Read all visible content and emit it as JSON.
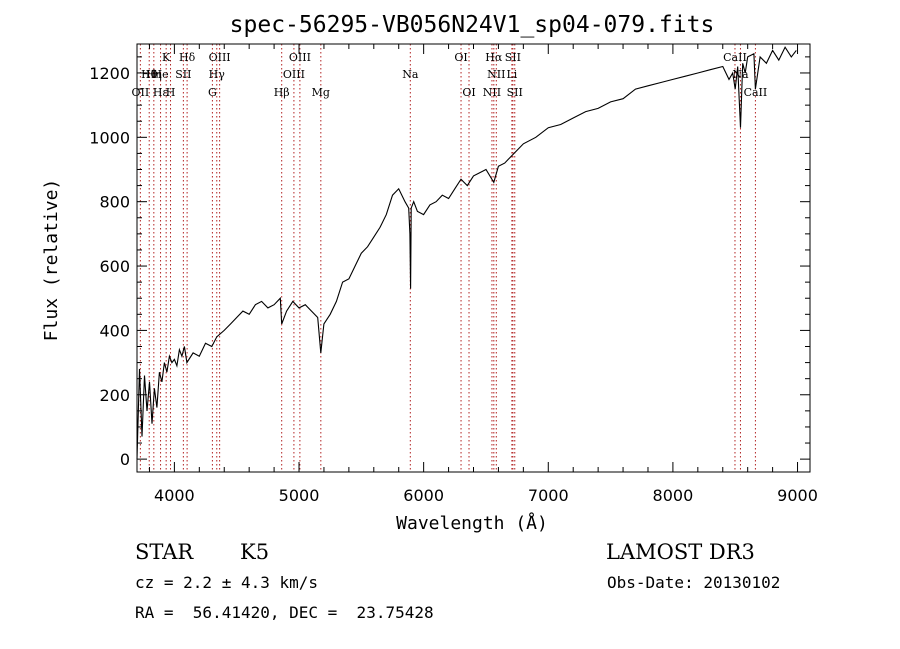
{
  "chart_data": {
    "type": "line",
    "title": "spec-56295-VB056N24V1_sp04-079.fits",
    "xlabel": "Wavelength (Å)",
    "ylabel": "Flux (relative)",
    "xlim": [
      3700,
      9100
    ],
    "ylim": [
      -40,
      1290
    ],
    "xticks": [
      4000,
      5000,
      6000,
      7000,
      8000,
      9000
    ],
    "yticks": [
      0,
      200,
      400,
      600,
      800,
      1000,
      1200
    ],
    "grid": false,
    "series": [
      {
        "name": "flux",
        "x": [
          3700,
          3720,
          3740,
          3760,
          3780,
          3800,
          3820,
          3840,
          3860,
          3880,
          3900,
          3920,
          3940,
          3960,
          3980,
          4000,
          4020,
          4040,
          4060,
          4080,
          4100,
          4150,
          4200,
          4250,
          4300,
          4340,
          4400,
          4450,
          4500,
          4550,
          4600,
          4650,
          4700,
          4750,
          4800,
          4850,
          4861,
          4900,
          4950,
          5000,
          5050,
          5100,
          5150,
          5175,
          5200,
          5250,
          5300,
          5350,
          5400,
          5450,
          5500,
          5550,
          5600,
          5650,
          5700,
          5750,
          5800,
          5850,
          5880,
          5890,
          5895,
          5900,
          5920,
          5950,
          6000,
          6050,
          6100,
          6150,
          6200,
          6250,
          6300,
          6350,
          6400,
          6450,
          6500,
          6563,
          6600,
          6650,
          6700,
          6750,
          6800,
          6900,
          7000,
          7100,
          7200,
          7300,
          7400,
          7500,
          7600,
          7700,
          7800,
          7900,
          8000,
          8100,
          8200,
          8300,
          8400,
          8450,
          8480,
          8500,
          8520,
          8542,
          8560,
          8580,
          8600,
          8650,
          8662,
          8700,
          8750,
          8800,
          8850,
          8900,
          8950,
          8990
        ],
        "values": [
          0,
          280,
          70,
          260,
          150,
          240,
          110,
          220,
          160,
          270,
          240,
          300,
          270,
          320,
          300,
          310,
          290,
          340,
          320,
          350,
          300,
          330,
          320,
          360,
          350,
          380,
          400,
          420,
          440,
          460,
          450,
          480,
          490,
          470,
          480,
          500,
          420,
          460,
          490,
          470,
          480,
          460,
          440,
          330,
          420,
          450,
          490,
          550,
          560,
          600,
          640,
          660,
          690,
          720,
          760,
          820,
          840,
          800,
          780,
          700,
          530,
          780,
          800,
          770,
          760,
          790,
          800,
          820,
          810,
          840,
          870,
          850,
          880,
          890,
          900,
          860,
          910,
          920,
          940,
          960,
          980,
          1000,
          1030,
          1040,
          1060,
          1080,
          1090,
          1110,
          1120,
          1150,
          1160,
          1170,
          1180,
          1190,
          1200,
          1210,
          1220,
          1180,
          1200,
          1150,
          1220,
          1030,
          1230,
          1200,
          1250,
          1260,
          1150,
          1250,
          1230,
          1270,
          1240,
          1280,
          1250,
          1270
        ]
      }
    ],
    "line_labels": [
      {
        "text": "Hθ",
        "wave": 3798,
        "row": 1
      },
      {
        "text": "OII",
        "wave": 3727,
        "row": 2
      },
      {
        "text": "Hη",
        "wave": 3835,
        "row": 1
      },
      {
        "text": "Hε",
        "wave": 3889,
        "row": 2
      },
      {
        "text": "He",
        "wave": 3889,
        "row": 1
      },
      {
        "text": "K",
        "wave": 3934,
        "row": 0
      },
      {
        "text": "H",
        "wave": 3969,
        "row": 2
      },
      {
        "text": "SII",
        "wave": 4072,
        "row": 1
      },
      {
        "text": "Hδ",
        "wave": 4102,
        "row": 0
      },
      {
        "text": "OIII",
        "wave": 4363,
        "row": 0
      },
      {
        "text": "Hγ",
        "wave": 4340,
        "row": 1
      },
      {
        "text": "G",
        "wave": 4305,
        "row": 2
      },
      {
        "text": "Hβ",
        "wave": 4861,
        "row": 2
      },
      {
        "text": "OIII",
        "wave": 5007,
        "row": 0
      },
      {
        "text": "OIII",
        "wave": 4959,
        "row": 1
      },
      {
        "text": "Mg",
        "wave": 5175,
        "row": 2
      },
      {
        "text": "Na",
        "wave": 5893,
        "row": 1
      },
      {
        "text": "OI",
        "wave": 6300,
        "row": 0
      },
      {
        "text": "OI",
        "wave": 6364,
        "row": 2
      },
      {
        "text": "Hα",
        "wave": 6563,
        "row": 0
      },
      {
        "text": "NII",
        "wave": 6583,
        "row": 1
      },
      {
        "text": "NII",
        "wave": 6548,
        "row": 2
      },
      {
        "text": "SII",
        "wave": 6716,
        "row": 0
      },
      {
        "text": "Li",
        "wave": 6708,
        "row": 1
      },
      {
        "text": "SII",
        "wave": 6731,
        "row": 2
      },
      {
        "text": "CaII",
        "wave": 8498,
        "row": 0
      },
      {
        "text": "Na",
        "wave": 8542,
        "row": 1
      },
      {
        "text": "CaII",
        "wave": 8662,
        "row": 2
      }
    ],
    "line_marks": [
      3727,
      3798,
      3835,
      3889,
      3934,
      3969,
      4072,
      4102,
      4305,
      4340,
      4363,
      4861,
      4959,
      5007,
      5175,
      5893,
      6300,
      6364,
      6548,
      6563,
      6583,
      6708,
      6716,
      6731,
      8498,
      8542,
      8662
    ]
  },
  "info": {
    "class": "STAR",
    "subclass": "K5",
    "cz": "cz = 2.2 ± 4.3 km/s",
    "radec": "RA =  56.41420, DEC =  23.75428",
    "survey": "LAMOST DR3",
    "obsdate": "Obs-Date: 20130102"
  }
}
